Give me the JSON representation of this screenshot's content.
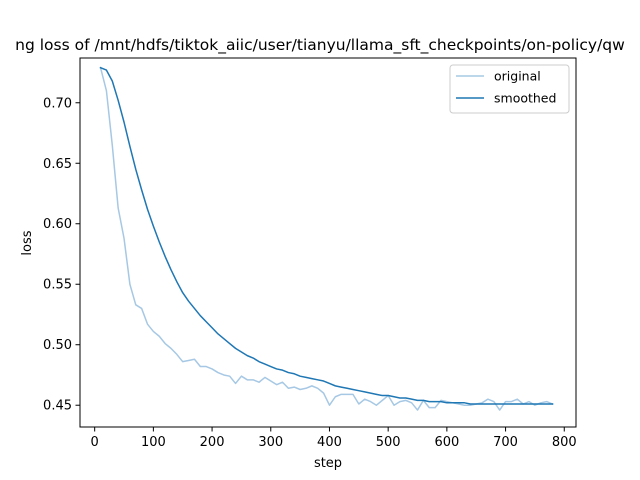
{
  "chart_data": {
    "type": "line",
    "title": "ng loss of /mnt/hdfs/tiktok_aiic/user/tianyu/llama_sft_checkpoints/on-policy/qw",
    "xlabel": "step",
    "ylabel": "loss",
    "xlim": [
      -25,
      820
    ],
    "ylim": [
      0.432,
      0.737
    ],
    "xticks": [
      0,
      100,
      200,
      300,
      400,
      500,
      600,
      700,
      800
    ],
    "yticks": [
      0.45,
      0.5,
      0.55,
      0.6,
      0.65,
      0.7
    ],
    "ytick_labels": [
      "0.45",
      "0.50",
      "0.55",
      "0.60",
      "0.65",
      "0.70"
    ],
    "grid": false,
    "legend_position": "top-right",
    "series": [
      {
        "name": "original",
        "color": "#a6c8e4",
        "x": [
          10,
          20,
          30,
          40,
          50,
          60,
          70,
          80,
          90,
          100,
          110,
          120,
          130,
          140,
          150,
          160,
          170,
          180,
          190,
          200,
          210,
          220,
          230,
          240,
          250,
          260,
          270,
          280,
          290,
          300,
          310,
          320,
          330,
          340,
          350,
          360,
          370,
          380,
          390,
          400,
          410,
          420,
          430,
          440,
          450,
          460,
          470,
          480,
          490,
          500,
          510,
          520,
          530,
          540,
          550,
          560,
          570,
          580,
          590,
          600,
          610,
          620,
          630,
          640,
          650,
          660,
          670,
          680,
          690,
          700,
          710,
          720,
          730,
          740,
          750,
          760,
          770,
          780
        ],
        "y": [
          0.729,
          0.71,
          0.665,
          0.613,
          0.588,
          0.55,
          0.533,
          0.53,
          0.517,
          0.511,
          0.507,
          0.501,
          0.497,
          0.492,
          0.486,
          0.487,
          0.488,
          0.482,
          0.482,
          0.48,
          0.477,
          0.475,
          0.474,
          0.468,
          0.474,
          0.471,
          0.471,
          0.469,
          0.473,
          0.47,
          0.467,
          0.469,
          0.464,
          0.465,
          0.463,
          0.464,
          0.466,
          0.464,
          0.46,
          0.45,
          0.457,
          0.459,
          0.459,
          0.459,
          0.451,
          0.455,
          0.453,
          0.45,
          0.454,
          0.458,
          0.45,
          0.453,
          0.454,
          0.452,
          0.446,
          0.454,
          0.448,
          0.448,
          0.454,
          0.453,
          0.452,
          0.451,
          0.45,
          0.45,
          0.451,
          0.452,
          0.455,
          0.453,
          0.446,
          0.453,
          0.453,
          0.455,
          0.451,
          0.453,
          0.45,
          0.452,
          0.453,
          0.451
        ]
      },
      {
        "name": "smoothed",
        "color": "#1f77b4",
        "x": [
          10,
          20,
          30,
          40,
          50,
          60,
          70,
          80,
          90,
          100,
          110,
          120,
          130,
          140,
          150,
          160,
          170,
          180,
          190,
          200,
          210,
          220,
          230,
          240,
          250,
          260,
          270,
          280,
          290,
          300,
          310,
          320,
          330,
          340,
          350,
          360,
          370,
          380,
          390,
          400,
          410,
          420,
          430,
          440,
          450,
          460,
          470,
          480,
          490,
          500,
          510,
          520,
          530,
          540,
          550,
          560,
          570,
          580,
          590,
          600,
          610,
          620,
          630,
          640,
          650,
          660,
          670,
          680,
          690,
          700,
          710,
          720,
          730,
          740,
          750,
          760,
          770,
          780
        ],
        "y": [
          0.729,
          0.727,
          0.718,
          0.702,
          0.684,
          0.664,
          0.645,
          0.628,
          0.612,
          0.598,
          0.585,
          0.573,
          0.562,
          0.552,
          0.543,
          0.536,
          0.53,
          0.524,
          0.519,
          0.514,
          0.509,
          0.505,
          0.501,
          0.497,
          0.494,
          0.491,
          0.489,
          0.486,
          0.484,
          0.482,
          0.48,
          0.479,
          0.477,
          0.476,
          0.474,
          0.473,
          0.472,
          0.471,
          0.47,
          0.468,
          0.466,
          0.465,
          0.464,
          0.463,
          0.462,
          0.461,
          0.46,
          0.459,
          0.458,
          0.458,
          0.457,
          0.456,
          0.456,
          0.455,
          0.454,
          0.454,
          0.453,
          0.453,
          0.453,
          0.452,
          0.452,
          0.452,
          0.452,
          0.451,
          0.451,
          0.451,
          0.451,
          0.451,
          0.451,
          0.451,
          0.451,
          0.451,
          0.451,
          0.451,
          0.451,
          0.451,
          0.451,
          0.451
        ]
      }
    ]
  }
}
